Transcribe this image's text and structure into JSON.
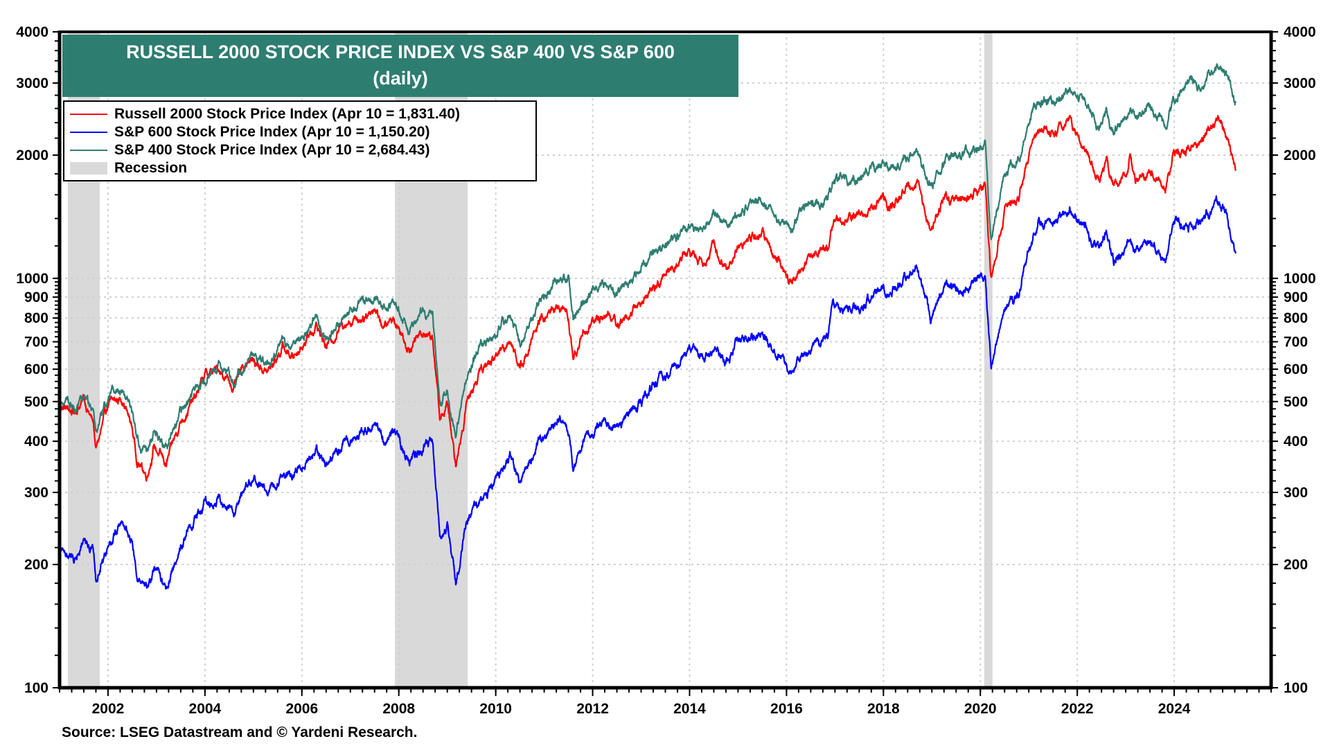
{
  "chart_data": {
    "type": "line",
    "title": "RUSSELL 2000 STOCK PRICE INDEX VS S&P 400 VS S&P 600",
    "subtitle": "(daily)",
    "xlabel": "",
    "ylabel": "",
    "yscale": "log",
    "ylim": [
      100,
      4000
    ],
    "xlim": [
      2001.0,
      2026.0
    ],
    "grid": true,
    "legend_position": "top-left",
    "y_ticks": [
      100,
      200,
      300,
      400,
      500,
      600,
      700,
      800,
      900,
      1000,
      2000,
      3000,
      4000
    ],
    "y_tick_labels": [
      "100",
      "200",
      "300",
      "400",
      "500",
      "600",
      "700",
      "800",
      "900",
      "1000",
      "2000",
      "3000",
      "4000"
    ],
    "x_ticks": [
      2002,
      2004,
      2006,
      2008,
      2010,
      2012,
      2014,
      2016,
      2018,
      2020,
      2022,
      2024
    ],
    "x_tick_labels": [
      "2002",
      "2004",
      "2006",
      "2008",
      "2010",
      "2012",
      "2014",
      "2016",
      "2018",
      "2020",
      "2022",
      "2024"
    ],
    "recessions": [
      {
        "start": 2001.17,
        "end": 2001.83
      },
      {
        "start": 2007.92,
        "end": 2009.42
      },
      {
        "start": 2020.08,
        "end": 2020.25
      }
    ],
    "series": [
      {
        "name": "Russell 2000 Stock Price Index",
        "legend_label": "Russell 2000 Stock Price Index (Apr 10 = 1,831.40)",
        "color": "#ff0000",
        "x": [
          2001.0,
          2001.3,
          2001.5,
          2001.7,
          2001.75,
          2002.0,
          2002.3,
          2002.5,
          2002.6,
          2002.8,
          2002.95,
          2003.2,
          2003.5,
          2003.8,
          2004.0,
          2004.3,
          2004.6,
          2004.9,
          2005.3,
          2005.6,
          2005.8,
          2006.3,
          2006.5,
          2006.9,
          2007.2,
          2007.5,
          2007.7,
          2007.9,
          2008.2,
          2008.5,
          2008.7,
          2008.85,
          2009.0,
          2009.18,
          2009.4,
          2009.7,
          2010.0,
          2010.3,
          2010.5,
          2010.9,
          2011.3,
          2011.5,
          2011.6,
          2011.8,
          2012.3,
          2012.5,
          2012.9,
          2013.3,
          2013.6,
          2013.99,
          2014.3,
          2014.5,
          2014.8,
          2014.99,
          2015.5,
          2015.8,
          2016.1,
          2016.5,
          2016.85,
          2016.95,
          2017.5,
          2017.99,
          2018.1,
          2018.7,
          2018.8,
          2018.98,
          2019.3,
          2019.6,
          2019.99,
          2020.1,
          2020.22,
          2020.5,
          2020.8,
          2020.99,
          2021.2,
          2021.5,
          2021.85,
          2022.2,
          2022.45,
          2022.6,
          2022.75,
          2022.95,
          2023.1,
          2023.2,
          2023.5,
          2023.82,
          2023.99,
          2024.3,
          2024.6,
          2024.9,
          2025.05,
          2025.15,
          2025.27
        ],
        "values": [
          490,
          470,
          510,
          440,
          380,
          490,
          510,
          430,
          360,
          330,
          390,
          350,
          450,
          510,
          580,
          600,
          540,
          640,
          590,
          680,
          640,
          770,
          680,
          790,
          800,
          850,
          760,
          800,
          680,
          740,
          720,
          450,
          490,
          343,
          500,
          600,
          640,
          720,
          600,
          780,
          860,
          800,
          630,
          740,
          830,
          770,
          850,
          950,
          1060,
          1160,
          1100,
          1200,
          1060,
          1200,
          1290,
          1100,
          960,
          1150,
          1200,
          1380,
          1420,
          1550,
          1480,
          1730,
          1500,
          1330,
          1590,
          1510,
          1670,
          1700,
          990,
          1450,
          1600,
          1980,
          2300,
          2250,
          2440,
          2050,
          1700,
          1950,
          1650,
          1760,
          1980,
          1720,
          1880,
          1640,
          2030,
          2080,
          2200,
          2440,
          2280,
          2080,
          1831.4
        ]
      },
      {
        "name": "S&P 600 Stock Price Index",
        "legend_label": "S&P 600 Stock Price Index (Apr 10 = 1,150.20)",
        "color": "#0000ff",
        "x": [
          2001.0,
          2001.3,
          2001.5,
          2001.7,
          2001.75,
          2002.0,
          2002.3,
          2002.5,
          2002.6,
          2002.8,
          2002.95,
          2003.2,
          2003.5,
          2003.9,
          2004.0,
          2004.3,
          2004.6,
          2004.9,
          2005.3,
          2005.6,
          2005.8,
          2006.3,
          2006.5,
          2006.9,
          2007.5,
          2007.7,
          2007.9,
          2008.2,
          2008.5,
          2008.7,
          2008.85,
          2009.0,
          2009.18,
          2009.4,
          2009.7,
          2010.0,
          2010.3,
          2010.5,
          2010.9,
          2011.3,
          2011.5,
          2011.6,
          2011.8,
          2012.3,
          2012.5,
          2012.9,
          2013.3,
          2013.6,
          2013.99,
          2014.3,
          2014.5,
          2014.8,
          2014.99,
          2015.5,
          2015.8,
          2016.1,
          2016.5,
          2016.85,
          2016.95,
          2017.5,
          2017.99,
          2018.1,
          2018.7,
          2018.8,
          2018.98,
          2019.3,
          2019.6,
          2019.99,
          2020.1,
          2020.22,
          2020.5,
          2020.8,
          2020.99,
          2021.2,
          2021.5,
          2021.85,
          2022.2,
          2022.45,
          2022.6,
          2022.75,
          2022.95,
          2023.1,
          2023.2,
          2023.5,
          2023.82,
          2023.99,
          2024.3,
          2024.6,
          2024.9,
          2025.05,
          2025.15,
          2025.27
        ],
        "values": [
          220,
          205,
          235,
          215,
          180,
          225,
          255,
          225,
          185,
          170,
          195,
          175,
          225,
          270,
          285,
          290,
          265,
          320,
          300,
          340,
          325,
          390,
          350,
          400,
          440,
          400,
          430,
          360,
          390,
          400,
          230,
          250,
          180,
          260,
          290,
          320,
          370,
          310,
          400,
          460,
          430,
          340,
          410,
          450,
          430,
          480,
          550,
          590,
          660,
          650,
          670,
          620,
          700,
          730,
          650,
          600,
          680,
          720,
          850,
          840,
          950,
          900,
          1080,
          950,
          800,
          980,
          920,
          1010,
          1020,
          600,
          850,
          900,
          1180,
          1360,
          1350,
          1470,
          1300,
          1150,
          1300,
          1100,
          1150,
          1280,
          1160,
          1250,
          1100,
          1350,
          1360,
          1400,
          1530,
          1430,
          1320,
          1150.2
        ]
      },
      {
        "name": "S&P 400 Stock Price Index",
        "legend_label": "S&P 400 Stock Price Index (Apr 10 = 2,684.43)",
        "color": "#2e7d71",
        "x": [
          2001.0,
          2001.3,
          2001.5,
          2001.7,
          2001.75,
          2002.0,
          2002.3,
          2002.5,
          2002.6,
          2002.8,
          2002.95,
          2003.2,
          2003.5,
          2003.8,
          2004.0,
          2004.3,
          2004.6,
          2004.9,
          2005.3,
          2005.6,
          2005.8,
          2006.3,
          2006.5,
          2006.9,
          2007.2,
          2007.5,
          2007.7,
          2007.9,
          2008.2,
          2008.5,
          2008.7,
          2008.85,
          2009.0,
          2009.18,
          2009.4,
          2009.7,
          2010.0,
          2010.3,
          2010.5,
          2010.9,
          2011.3,
          2011.5,
          2011.6,
          2011.8,
          2012.3,
          2012.5,
          2012.9,
          2013.3,
          2013.6,
          2013.99,
          2014.3,
          2014.5,
          2014.8,
          2014.99,
          2015.5,
          2015.8,
          2016.1,
          2016.5,
          2016.85,
          2016.95,
          2017.5,
          2017.99,
          2018.1,
          2018.7,
          2018.8,
          2018.98,
          2019.3,
          2019.6,
          2019.99,
          2020.1,
          2020.22,
          2020.5,
          2020.8,
          2020.99,
          2021.2,
          2021.5,
          2021.85,
          2022.2,
          2022.45,
          2022.6,
          2022.75,
          2022.95,
          2023.1,
          2023.2,
          2023.5,
          2023.82,
          2023.99,
          2024.3,
          2024.6,
          2024.9,
          2025.05,
          2025.15,
          2025.27
        ],
        "values": [
          510,
          480,
          530,
          470,
          420,
          510,
          545,
          470,
          400,
          370,
          430,
          390,
          470,
          540,
          580,
          610,
          560,
          640,
          620,
          700,
          680,
          800,
          730,
          800,
          850,
          920,
          830,
          880,
          760,
          860,
          800,
          500,
          530,
          410,
          580,
          690,
          730,
          830,
          700,
          880,
          1000,
          980,
          780,
          900,
          990,
          920,
          1020,
          1150,
          1250,
          1340,
          1350,
          1420,
          1330,
          1450,
          1550,
          1400,
          1320,
          1550,
          1560,
          1700,
          1760,
          1900,
          1850,
          2050,
          1900,
          1700,
          1990,
          1950,
          2070,
          2100,
          1250,
          1800,
          1950,
          2450,
          2700,
          2700,
          2900,
          2650,
          2300,
          2600,
          2250,
          2450,
          2650,
          2450,
          2600,
          2350,
          2750,
          2950,
          3000,
          3350,
          3150,
          3000,
          2684.43
        ]
      }
    ],
    "legend": [
      {
        "label": "Russell 2000 Stock Price Index (Apr 10 = 1,831.40)",
        "color": "#ff0000",
        "kind": "line"
      },
      {
        "label": "S&P 600 Stock Price Index (Apr 10 = 1,150.20)",
        "color": "#0000ff",
        "kind": "line"
      },
      {
        "label": "S&P 400 Stock Price Index (Apr 10 = 2,684.43)",
        "color": "#2e7d71",
        "kind": "line"
      },
      {
        "label": "Recession",
        "color": "#d9d9d9",
        "kind": "area"
      }
    ],
    "source": "Source: LSEG Datastream and © Yardeni Research."
  },
  "colors": {
    "title_bg": "#2e7d71",
    "recession": "#d9d9d9",
    "grid": "#d0d0d0"
  }
}
